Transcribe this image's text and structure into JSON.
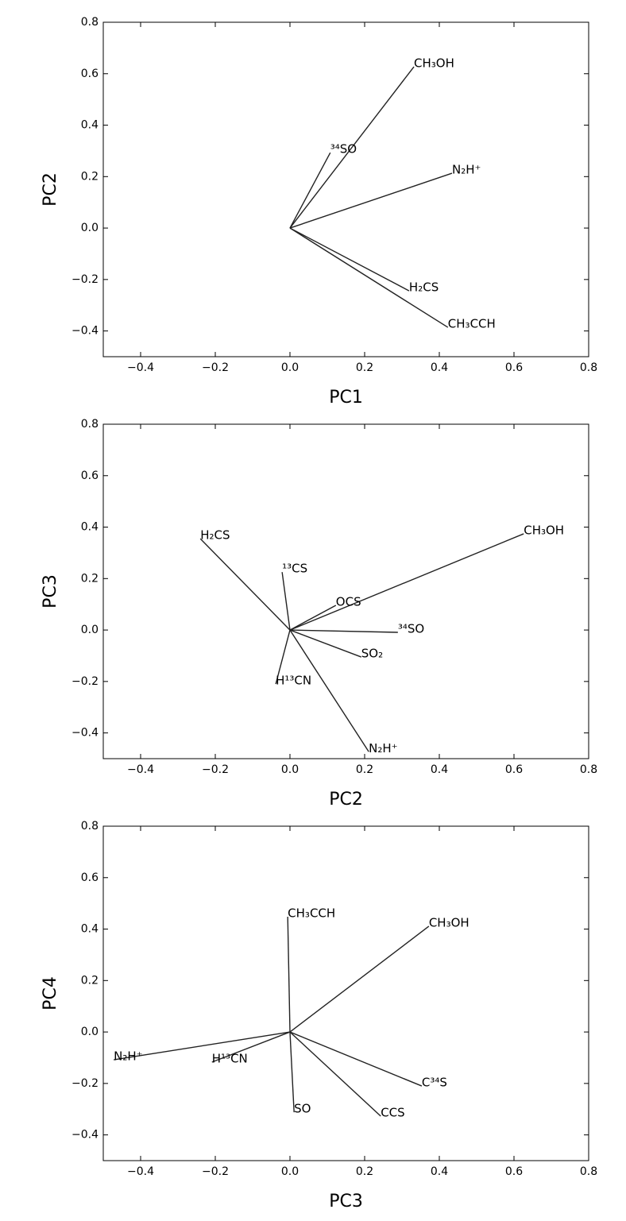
{
  "chart_data": [
    {
      "type": "vector",
      "xlabel": "PC1",
      "ylabel": "PC2",
      "xlim": [
        -0.5,
        0.8
      ],
      "ylim": [
        -0.5,
        0.8
      ],
      "xticks": [
        {
          "value": -0.4,
          "label": "−0.4"
        },
        {
          "value": -0.2,
          "label": "−0.2"
        },
        {
          "value": 0,
          "label": "0.0"
        },
        0.2,
        0.4,
        0.6,
        0.8
      ],
      "yticks": [
        {
          "value": -0.4,
          "label": "−0.4"
        },
        {
          "value": -0.2,
          "label": "−0.2"
        },
        {
          "value": 0,
          "label": "0.0"
        },
        0.2,
        0.4,
        0.6,
        0.8
      ],
      "color": "#222222",
      "vectors": [
        {
          "label": "CH₃OH",
          "x": 0.332,
          "y": 0.627
        },
        {
          "label": "³⁴SO",
          "x": 0.108,
          "y": 0.293
        },
        {
          "label": "N₂H⁺",
          "x": 0.434,
          "y": 0.213
        },
        {
          "label": "H₂CS",
          "x": 0.319,
          "y": -0.244
        },
        {
          "label": "CH₃CCH",
          "x": 0.423,
          "y": -0.386
        }
      ]
    },
    {
      "type": "vector",
      "xlabel": "PC2",
      "ylabel": "PC3",
      "xlim": [
        -0.5,
        0.8
      ],
      "ylim": [
        -0.5,
        0.8
      ],
      "xticks": [
        {
          "value": -0.4,
          "label": "−0.4"
        },
        {
          "value": -0.2,
          "label": "−0.2"
        },
        {
          "value": 0,
          "label": "0.0"
        },
        0.2,
        0.4,
        0.6,
        0.8
      ],
      "yticks": [
        {
          "value": -0.4,
          "label": "−0.4"
        },
        {
          "value": -0.2,
          "label": "−0.2"
        },
        {
          "value": 0,
          "label": "0.0"
        },
        0.2,
        0.4,
        0.6,
        0.8
      ],
      "color": "#222222",
      "vectors": [
        {
          "label": "CH₃OH",
          "x": 0.626,
          "y": 0.374
        },
        {
          "label": "H₂CS",
          "x": -0.24,
          "y": 0.355
        },
        {
          "label": "¹³CS",
          "x": -0.021,
          "y": 0.225
        },
        {
          "label": "OCS",
          "x": 0.123,
          "y": 0.096
        },
        {
          "label": "³⁴SO",
          "x": 0.289,
          "y": -0.009
        },
        {
          "label": "SO₂",
          "x": 0.191,
          "y": -0.105
        },
        {
          "label": "H¹³CN",
          "x": -0.038,
          "y": -0.21
        },
        {
          "label": "N₂H⁺",
          "x": 0.211,
          "y": -0.473
        }
      ]
    },
    {
      "type": "vector",
      "xlabel": "PC3",
      "ylabel": "PC4",
      "xlim": [
        -0.5,
        0.8
      ],
      "ylim": [
        -0.5,
        0.8
      ],
      "xticks": [
        {
          "value": -0.4,
          "label": "−0.4"
        },
        {
          "value": -0.2,
          "label": "−0.2"
        },
        {
          "value": 0,
          "label": "0.0"
        },
        0.2,
        0.4,
        0.6,
        0.8
      ],
      "yticks": [
        {
          "value": -0.4,
          "label": "−0.4"
        },
        {
          "value": -0.2,
          "label": "−0.2"
        },
        {
          "value": 0,
          "label": "0.0"
        },
        0.2,
        0.4,
        0.6,
        0.8
      ],
      "color": "#222222",
      "vectors": [
        {
          "label": "CH₃CCH",
          "x": -0.006,
          "y": 0.448
        },
        {
          "label": "CH₃OH",
          "x": 0.372,
          "y": 0.411
        },
        {
          "label": "N₂H⁺",
          "x": -0.472,
          "y": -0.108
        },
        {
          "label": "H¹³CN",
          "x": -0.209,
          "y": -0.117
        },
        {
          "label": "SO",
          "x": 0.011,
          "y": -0.312
        },
        {
          "label": "CCS",
          "x": 0.243,
          "y": -0.327
        },
        {
          "label": "C³⁴S",
          "x": 0.353,
          "y": -0.21
        }
      ]
    }
  ]
}
